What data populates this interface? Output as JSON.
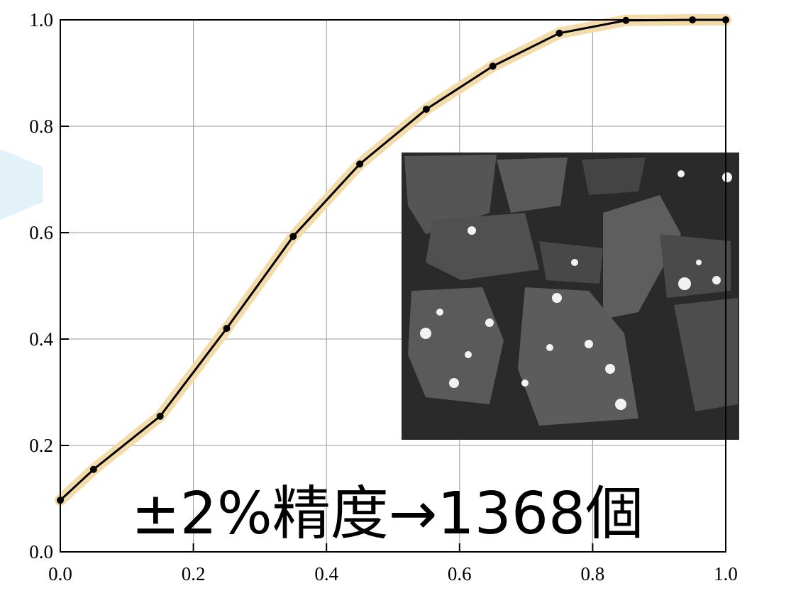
{
  "chart_data": {
    "type": "line",
    "x": [
      0,
      0.05,
      0.15,
      0.25,
      0.35,
      0.45,
      0.55,
      0.65,
      0.75,
      0.85,
      0.95,
      1.0
    ],
    "series": [
      {
        "color": "#000000",
        "band_color": "#f3dcaa",
        "values": [
          0.097,
          0.155,
          0.255,
          0.42,
          0.593,
          0.729,
          0.832,
          0.913,
          0.975,
          0.999,
          1.0,
          1.0
        ]
      }
    ],
    "xlim": [
      0,
      1
    ],
    "ylim": [
      0,
      1
    ],
    "xticks": [
      {
        "value": 0,
        "label": "0.0"
      },
      {
        "value": 0.2,
        "label": "0.2"
      },
      {
        "value": 0.4,
        "label": "0.4"
      },
      {
        "value": 0.6,
        "label": "0.6"
      },
      {
        "value": 0.8,
        "label": "0.8"
      },
      {
        "value": 1,
        "label": "1.0"
      }
    ],
    "yticks": [
      {
        "value": 0,
        "label": "0.0"
      },
      {
        "value": 0.2,
        "label": "0.2"
      },
      {
        "value": 0.4,
        "label": "0.4"
      },
      {
        "value": 0.6,
        "label": "0.6"
      },
      {
        "value": 0.8,
        "label": "0.8"
      },
      {
        "value": 1,
        "label": "1.0"
      }
    ],
    "grid": true,
    "annotation": "±2%精度→1368個"
  }
}
